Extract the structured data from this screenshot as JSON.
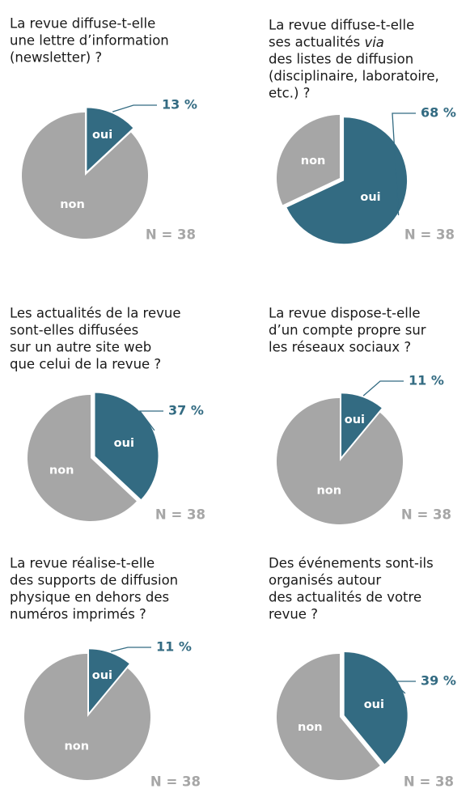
{
  "chart_data": [
    {
      "type": "pie",
      "title": [
        "La revue diffuse-t-elle",
        "une lettre d’information",
        "(newsletter) ?"
      ],
      "categories": [
        "oui",
        "non"
      ],
      "values": [
        13,
        87
      ],
      "value_labels": [
        "13 %",
        null
      ],
      "colors": [
        "#336b82",
        "#a6a6a6"
      ],
      "annotation": "N = 38"
    },
    {
      "type": "pie",
      "title": [
        "La revue diffuse-t-elle",
        "ses actualités via",
        "des listes de diffusion",
        "(disciplinaire, laboratoire,",
        "etc.) ?"
      ],
      "title_italic": "via",
      "categories": [
        "oui",
        "non"
      ],
      "values": [
        68,
        32
      ],
      "value_labels": [
        "68 %",
        null
      ],
      "colors": [
        "#336b82",
        "#a6a6a6"
      ],
      "annotation": "N = 38"
    },
    {
      "type": "pie",
      "title": [
        "Les actualités de la revue",
        "sont-elles diffusées",
        "sur un autre site web",
        "que celui de la revue ?"
      ],
      "categories": [
        "oui",
        "non"
      ],
      "values": [
        37,
        63
      ],
      "value_labels": [
        "37 %",
        null
      ],
      "colors": [
        "#336b82",
        "#a6a6a6"
      ],
      "annotation": "N = 38"
    },
    {
      "type": "pie",
      "title": [
        "La revue dispose-t-elle",
        "d’un compte propre sur",
        "les réseaux sociaux ?"
      ],
      "categories": [
        "oui",
        "non"
      ],
      "values": [
        11,
        89
      ],
      "value_labels": [
        "11 %",
        null
      ],
      "colors": [
        "#336b82",
        "#a6a6a6"
      ],
      "annotation": "N = 38"
    },
    {
      "type": "pie",
      "title": [
        "La revue réalise-t-elle",
        "des supports de diffusion",
        "physique en dehors des",
        "numéros imprimés ?"
      ],
      "categories": [
        "oui",
        "non"
      ],
      "values": [
        11,
        89
      ],
      "value_labels": [
        "11 %",
        null
      ],
      "colors": [
        "#336b82",
        "#a6a6a6"
      ],
      "annotation": "N = 38"
    },
    {
      "type": "pie",
      "title": [
        "Des événements sont-ils",
        "organisés autour",
        "des actualités de votre",
        "revue ?"
      ],
      "categories": [
        "oui",
        "non"
      ],
      "values": [
        39,
        61
      ],
      "value_labels": [
        "39 %",
        null
      ],
      "colors": [
        "#336b82",
        "#a6a6a6"
      ],
      "annotation": "N = 38"
    }
  ]
}
